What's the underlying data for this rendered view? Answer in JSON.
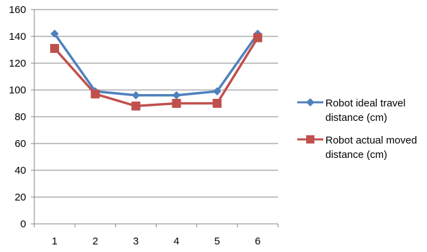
{
  "chart_data": {
    "type": "line",
    "title": "",
    "xlabel": "",
    "ylabel": "",
    "categories": [
      "1",
      "2",
      "3",
      "4",
      "5",
      "6"
    ],
    "ylim": [
      0,
      160
    ],
    "yticks": [
      0,
      20,
      40,
      60,
      80,
      100,
      120,
      140,
      160
    ],
    "grid": "horizontal",
    "legend_position": "right",
    "series": [
      {
        "name": "Robot ideal travel distance (cm)",
        "values": [
          142,
          99,
          96,
          96,
          99,
          142
        ],
        "color": "#4F81BD",
        "marker": "diamond"
      },
      {
        "name": "Robot actual moved distance (cm)",
        "values": [
          131,
          97,
          88,
          90,
          90,
          139
        ],
        "color": "#C0504D",
        "marker": "square"
      }
    ]
  }
}
